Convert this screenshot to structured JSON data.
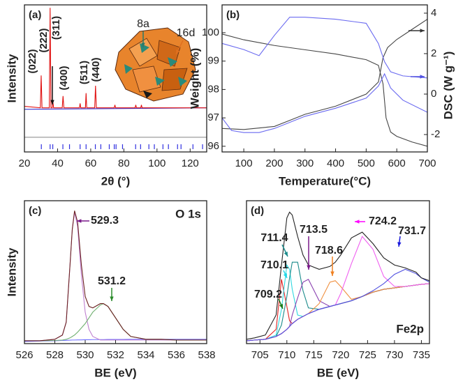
{
  "chart_data": [
    {
      "type": "line",
      "label": "(a)",
      "xlabel": "2θ (°)",
      "ylabel": "Intensity",
      "xlim": [
        20,
        130
      ],
      "ylim": [
        0,
        100
      ],
      "xticks": [
        20,
        40,
        60,
        80,
        100,
        120
      ],
      "series": [
        {
          "color": "#3030d0",
          "x": [
            20,
            130
          ],
          "values": [
            29,
            30
          ]
        },
        {
          "color": "#e01010",
          "x": [
            20,
            29.6,
            30.1,
            30.6,
            35,
            35.5,
            36,
            36.8,
            37.2,
            37.6,
            42.8,
            43.3,
            43.8,
            53.2,
            53.6,
            54,
            56.8,
            57.2,
            57.6,
            62.4,
            62.9,
            63.4,
            74.2,
            74.6,
            75,
            86.8,
            87.2,
            87.6,
            90.2,
            90.6,
            91,
            130
          ],
          "values": [
            31,
            30,
            52,
            30,
            30,
            98,
            30,
            30,
            34,
            30,
            30,
            38,
            30,
            30,
            33,
            30,
            30,
            40,
            30,
            30,
            45,
            30,
            30,
            32,
            30,
            30,
            32,
            30,
            30,
            32,
            30,
            30
          ]
        },
        {
          "color": "#909090",
          "x": [
            20,
            130
          ],
          "values": [
            10,
            10
          ]
        }
      ],
      "bragg_positions": [
        30.2,
        35.5,
        37.1,
        43.2,
        47.2,
        53.6,
        57.2,
        62.8,
        66.1,
        71.2,
        74.2,
        75.3,
        79.2,
        87.1,
        90.1,
        95.1,
        98.4,
        103.6,
        106.9,
        112.4,
        114.5,
        121.7,
        127.5
      ],
      "bragg_color": "#3030e0",
      "peak_labels": [
        "(022)",
        "(311)",
        "(222)",
        "(400)",
        "(511)",
        "(440)"
      ],
      "inset_labels": [
        {
          "text": "8a",
          "color": "#2a7a6a"
        },
        {
          "text": "16d",
          "color": "#e07020"
        }
      ]
    },
    {
      "type": "line",
      "label": "(b)",
      "xlabel": "Temperature(°C)",
      "ylabel": "Weight (%)",
      "y2label": "DSC (W g⁻¹)",
      "xlim": [
        29,
        700
      ],
      "ylim": [
        95.8,
        100.98
      ],
      "y2lim": [
        -2.86,
        4.41
      ],
      "xticks": [
        100,
        200,
        300,
        400,
        500,
        600,
        700
      ],
      "yticks": [
        96,
        97,
        98,
        99,
        100
      ],
      "y2ticks": [
        -2,
        0,
        2,
        4
      ],
      "series": [
        {
          "color": "#444444",
          "x": [
            30,
            100,
            200,
            300,
            400,
            500,
            540,
            555,
            565,
            580,
            600,
            650,
            700
          ],
          "values": [
            99.95,
            99.75,
            99.55,
            99.4,
            99.25,
            99.05,
            98.85,
            98.2,
            97.0,
            96.5,
            96.35,
            96.15,
            96.0
          ]
        },
        {
          "color": "#444444",
          "axis": "y2",
          "x": [
            30,
            100,
            200,
            250,
            300,
            400,
            500,
            540,
            555,
            570,
            600,
            650,
            700
          ],
          "values": [
            -1.7,
            -1.75,
            -1.6,
            -1.3,
            -1.0,
            -0.6,
            0.0,
            0.6,
            1.8,
            2.3,
            2.7,
            3.2,
            3.7
          ]
        },
        {
          "color": "#6a6af0",
          "axis": "y2",
          "x": [
            30,
            100,
            150,
            200,
            250,
            300,
            400,
            500,
            540,
            560,
            580,
            620,
            700
          ],
          "values": [
            2.5,
            2.2,
            1.9,
            2.9,
            3.8,
            3.8,
            3.7,
            3.5,
            2.5,
            1.6,
            1.1,
            0.9,
            0.8
          ]
        },
        {
          "color": "#6a6af0",
          "axis": "y2",
          "x": [
            30,
            60,
            100,
            150,
            200,
            300,
            400,
            500,
            540,
            560,
            580,
            620,
            700
          ],
          "values": [
            -1.2,
            -1.8,
            -1.9,
            -1.9,
            -1.7,
            -1.1,
            -0.7,
            -0.2,
            0.4,
            1.0,
            0.3,
            -0.3,
            -0.9
          ]
        }
      ]
    },
    {
      "type": "line",
      "label": "(c)",
      "xlabel": "BE (eV)",
      "ylabel": "Intensity",
      "title": "O 1s",
      "xlim": [
        526,
        538
      ],
      "ylim": [
        0,
        100
      ],
      "xticks": [
        526,
        528,
        530,
        532,
        534,
        536,
        538
      ],
      "x": [
        526,
        527,
        528,
        528.5,
        528.75,
        529,
        529.15,
        529.3,
        529.5,
        529.75,
        530,
        530.25,
        530.5,
        531,
        531.2,
        531.5,
        532,
        532.5,
        533,
        534,
        535,
        536,
        537,
        538
      ],
      "series": [
        {
          "color": "#7070ff",
          "values": [
            1.5,
            1.8,
            2,
            2.2,
            2.3,
            2.4,
            2.5,
            2.5,
            2.6,
            2.6,
            2.7,
            2.7,
            2.8,
            2.8,
            2.8,
            2.9,
            2.9,
            2.9,
            3,
            3,
            3,
            3,
            3,
            3
          ]
        },
        {
          "color": "#c080d0",
          "values": [
            2,
            2,
            3,
            6,
            15,
            55,
            80,
            92,
            82,
            48,
            22,
            10,
            5,
            2.5,
            2.5,
            2.5,
            2.5,
            2.5,
            2.5,
            2.5,
            2.5,
            2.5,
            2.5,
            2.5
          ]
        },
        {
          "color": "#70b070",
          "values": [
            2,
            2,
            2.2,
            2.5,
            3,
            4,
            5,
            6,
            8,
            11,
            14,
            18,
            22,
            27,
            28,
            26,
            18,
            10,
            5,
            3,
            3,
            2.5,
            2.5,
            2.5
          ]
        },
        {
          "color": "#6a2020",
          "values": [
            2,
            2,
            3,
            6,
            15,
            55,
            80,
            93,
            85,
            55,
            33,
            26,
            25,
            28,
            28,
            26,
            18,
            10,
            5,
            3,
            3,
            2.5,
            2.5,
            2.5
          ]
        }
      ],
      "annotations": [
        {
          "text": "529.3",
          "color": "#7a1a8a"
        },
        {
          "text": "531.2",
          "color": "#2a8a2a"
        }
      ]
    },
    {
      "type": "line",
      "label": "(d)",
      "xlabel": "BE (eV)",
      "title": "Fe2p",
      "xlim": [
        702.5,
        736.5
      ],
      "ylim": [
        0,
        100
      ],
      "xticks": [
        705,
        710,
        715,
        720,
        725,
        730,
        735
      ],
      "x": [
        702.5,
        704,
        706,
        708,
        709,
        710,
        710.5,
        711,
        712,
        713,
        714,
        716,
        718,
        719,
        720,
        722,
        724,
        726,
        728,
        730,
        732,
        734,
        735,
        736.5
      ],
      "series": [
        {
          "color": "#40a040",
          "values": [
            2,
            2.5,
            3,
            5,
            7,
            10,
            12,
            14,
            17,
            19,
            21,
            24,
            26,
            27,
            28,
            30,
            33,
            36,
            38,
            39,
            40,
            41,
            41.5,
            42
          ]
        },
        {
          "color": "#e02020",
          "values": [
            2,
            2.5,
            3,
            10,
            45,
            26,
            16,
            14,
            17,
            19,
            21,
            24,
            26,
            27,
            28,
            30,
            33,
            36,
            38,
            39,
            40,
            41,
            41.5,
            42
          ]
        },
        {
          "color": "#30d8e0",
          "values": [
            2,
            2.5,
            3,
            6,
            24,
            55,
            52,
            38,
            20,
            19,
            21,
            24,
            26,
            27,
            28,
            30,
            33,
            36,
            38,
            39,
            40,
            41,
            41.5,
            42
          ]
        },
        {
          "color": "#1a8a8a",
          "values": [
            2,
            2.5,
            3,
            5,
            13,
            33,
            46,
            57,
            57,
            37,
            25,
            24,
            26,
            27,
            28,
            30,
            33,
            36,
            38,
            39,
            40,
            41,
            41.5,
            42
          ]
        },
        {
          "color": "#8a40b0",
          "values": [
            2,
            2.5,
            3,
            5,
            7,
            10,
            12,
            20,
            32,
            43,
            45,
            30,
            26,
            27,
            28,
            30,
            33,
            36,
            38,
            39,
            40,
            41,
            41.5,
            42
          ]
        },
        {
          "color": "#f09040",
          "values": [
            2,
            2.5,
            3,
            5,
            7,
            10,
            12,
            14,
            17,
            19,
            21,
            28,
            43,
            44,
            40,
            31,
            33,
            36,
            38,
            39,
            40,
            41,
            41.5,
            42
          ]
        },
        {
          "color": "#f060f0",
          "values": [
            2,
            2.5,
            3,
            5,
            7,
            10,
            12,
            14,
            17,
            19,
            21,
            24,
            26,
            27,
            35,
            56,
            75,
            66,
            47,
            40,
            40,
            41,
            41.5,
            42
          ]
        },
        {
          "color": "#5050e0",
          "values": [
            2,
            2.5,
            3,
            5,
            7,
            10,
            12,
            14,
            17,
            19,
            21,
            24,
            26,
            27,
            28,
            30,
            33,
            37,
            42,
            48.5,
            52,
            49,
            46,
            43
          ]
        },
        {
          "color": "#222222",
          "values": [
            3,
            4,
            6,
            20,
            55,
            88,
            92,
            90,
            75,
            62,
            55,
            52,
            54,
            57,
            62,
            74,
            78,
            70,
            60,
            55,
            53,
            50,
            46,
            44
          ]
        }
      ],
      "annotations": [
        {
          "text": "711.4",
          "color": "#1a8a8a"
        },
        {
          "text": "710.1",
          "color": "#20d8e8"
        },
        {
          "text": "709.2",
          "color": "#1a7a1a"
        },
        {
          "text": "713.5",
          "color": "#7a1a8a"
        },
        {
          "text": "718.6",
          "color": "#f08020"
        },
        {
          "text": "724.2",
          "color": "#ff00ff"
        },
        {
          "text": "731.7",
          "color": "#1a1adc"
        }
      ]
    }
  ]
}
